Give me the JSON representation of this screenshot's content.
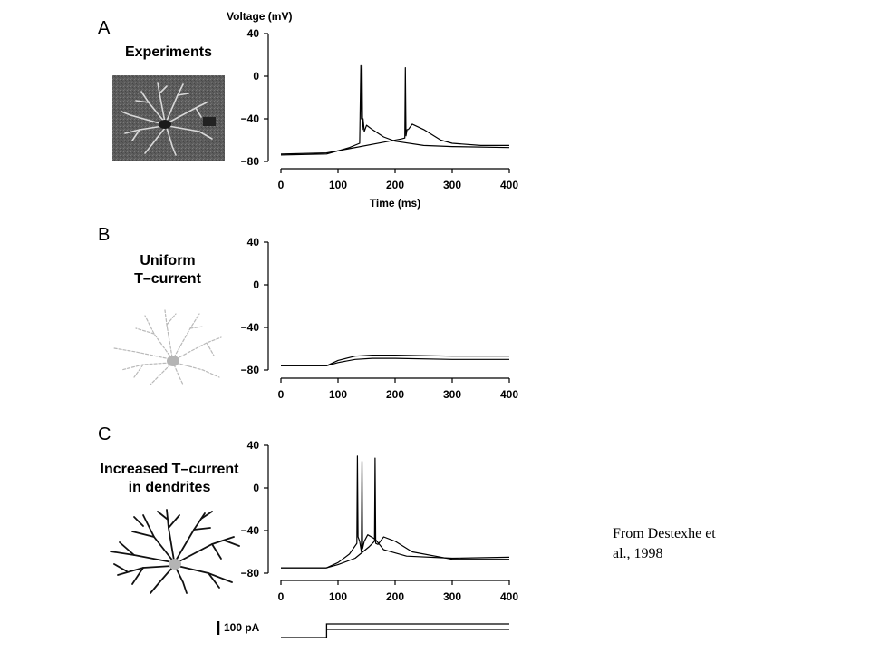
{
  "panels": {
    "a": {
      "letter": "A",
      "title_lines": [
        "Experiments"
      ]
    },
    "b": {
      "letter": "B",
      "title_lines": [
        "Uniform",
        "T–current"
      ]
    },
    "c": {
      "letter": "C",
      "title_lines": [
        "Increased T–current",
        "in dendrites"
      ]
    }
  },
  "caption": {
    "line1": "From Destexhe et",
    "line2": "al., 1998"
  },
  "scale_bar": {
    "label": "100 pA"
  },
  "colors": {
    "trace": "#000000",
    "neuron_gray": "#b4b4b4",
    "neuron_black": "#111111",
    "photo_bg": "#5a5a5a"
  },
  "chart_data": [
    {
      "type": "line",
      "panel": "A",
      "ylabel": "Voltage (mV)",
      "xlabel": "Time (ms)",
      "xlim": [
        0,
        400
      ],
      "ylim": [
        -80,
        40
      ],
      "xticks": [
        0,
        100,
        200,
        300,
        400
      ],
      "yticks": [
        40,
        0,
        -40,
        -80
      ],
      "ytick_labels": [
        "40",
        "0",
        "−40",
        "−80"
      ],
      "series": [
        {
          "x": [
            0,
            80,
            100,
            120,
            138,
            140,
            141,
            142,
            143,
            144,
            146,
            150,
            160,
            180,
            200,
            250,
            300,
            400
          ],
          "y": [
            -74,
            -73,
            -70,
            -67,
            -63,
            10,
            -40,
            10,
            -50,
            -40,
            -52,
            -46,
            -50,
            -57,
            -61,
            -65,
            -66,
            -67
          ]
        },
        {
          "x": [
            0,
            80,
            120,
            180,
            210,
            217,
            218,
            219,
            221,
            223,
            230,
            250,
            280,
            300,
            350,
            400
          ],
          "y": [
            -73,
            -72,
            -68,
            -62,
            -59,
            -58,
            8,
            -56,
            -50,
            -50,
            -45,
            -50,
            -60,
            -63,
            -65,
            -65
          ]
        }
      ]
    },
    {
      "type": "line",
      "panel": "B",
      "xlim": [
        0,
        400
      ],
      "ylim": [
        -80,
        40
      ],
      "xticks": [
        0,
        100,
        200,
        300,
        400
      ],
      "yticks": [
        40,
        0,
        -40,
        -80
      ],
      "ytick_labels": [
        "40",
        "0",
        "−40",
        "−80"
      ],
      "series": [
        {
          "x": [
            0,
            80,
            100,
            130,
            160,
            200,
            300,
            400
          ],
          "y": [
            -76,
            -76,
            -71,
            -67,
            -66,
            -66,
            -67,
            -67
          ]
        },
        {
          "x": [
            0,
            80,
            100,
            130,
            160,
            200,
            300,
            400
          ],
          "y": [
            -76,
            -76,
            -73,
            -70,
            -69,
            -69,
            -70,
            -70
          ]
        }
      ]
    },
    {
      "type": "line",
      "panel": "C",
      "xlim": [
        0,
        400
      ],
      "ylim": [
        -80,
        40
      ],
      "xticks": [
        0,
        100,
        200,
        300,
        400
      ],
      "yticks": [
        40,
        0,
        -40,
        -80
      ],
      "ytick_labels": [
        "40",
        "0",
        "−40",
        "−80"
      ],
      "series": [
        {
          "x": [
            0,
            80,
            100,
            120,
            133,
            134,
            135,
            138,
            141,
            142,
            143,
            146,
            152,
            165,
            180,
            220,
            300,
            400
          ],
          "y": [
            -75,
            -75,
            -70,
            -62,
            -52,
            30,
            -46,
            -50,
            -60,
            25,
            -57,
            -50,
            -44,
            -48,
            -58,
            -64,
            -66,
            -65
          ]
        },
        {
          "x": [
            0,
            80,
            100,
            130,
            155,
            164,
            165,
            166,
            170,
            180,
            200,
            230,
            300,
            400
          ],
          "y": [
            -75,
            -75,
            -72,
            -66,
            -55,
            -50,
            28,
            -52,
            -53,
            -46,
            -50,
            -60,
            -67,
            -67
          ]
        }
      ]
    },
    {
      "type": "line",
      "panel": "stimulus",
      "xlim": [
        0,
        400
      ],
      "scale_bar_value": 100,
      "scale_bar_unit": "pA",
      "series": [
        {
          "x": [
            0,
            80,
            80,
            400
          ],
          "y": [
            0,
            0,
            1,
            1
          ]
        },
        {
          "x": [
            80,
            400
          ],
          "y": [
            0.6,
            0.6
          ]
        }
      ]
    }
  ]
}
